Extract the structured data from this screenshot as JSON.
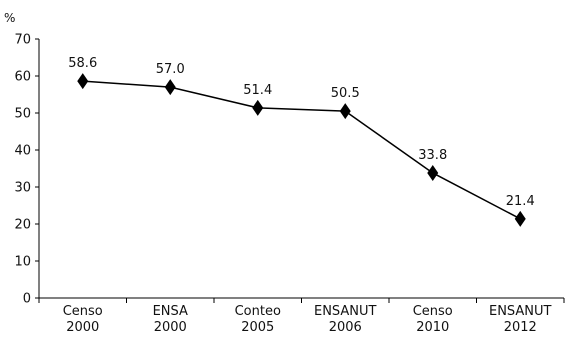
{
  "chart_data": {
    "type": "line",
    "title": "",
    "xlabel": "",
    "ylabel": "%",
    "ylim": [
      0,
      70
    ],
    "yticks": [
      0,
      10,
      20,
      30,
      40,
      50,
      60,
      70
    ],
    "grid": false,
    "legend": "none",
    "categories": [
      [
        "Censo",
        "2000"
      ],
      [
        "ENSA",
        "2000"
      ],
      [
        "Conteo",
        "2005"
      ],
      [
        "ENSANUT",
        "2006"
      ],
      [
        "Censo",
        "2010"
      ],
      [
        "ENSANUT",
        "2012"
      ]
    ],
    "series": [
      {
        "values": [
          58.6,
          57.0,
          51.4,
          50.5,
          33.8,
          21.4
        ],
        "labels": [
          "58.6",
          "57.0",
          "51.4",
          "50.5",
          "33.8",
          "21.4"
        ],
        "marker": "diamond",
        "color": "#000000"
      }
    ]
  }
}
